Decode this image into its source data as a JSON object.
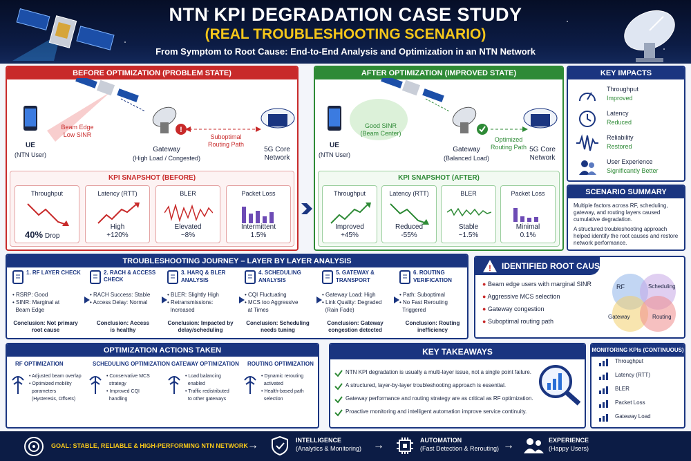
{
  "header": {
    "title": "NTN KPI DEGRADATION CASE STUDY",
    "subtitle": "(REAL TROUBLESHOOTING SCENARIO)",
    "tagline": "From Symptom to Root Cause: End-to-End Analysis and Optimization in an NTN Network"
  },
  "before": {
    "title": "BEFORE OPTIMIZATION (PROBLEM STATE)",
    "ue_label": "UE",
    "ue_sub": "(NTN User)",
    "beam_note_1": "Beam Edge",
    "beam_note_2": "Low SINR",
    "gateway_label": "Gateway",
    "gateway_sub": "(High Load / Congested)",
    "routing_note_1": "Suboptimal",
    "routing_note_2": "Routing Path",
    "core_label_1": "5G Core",
    "core_label_2": "Network",
    "kpi_title": "KPI SNAPSHOT (BEFORE)",
    "kpis": [
      {
        "name": "Throughput",
        "v1": "40%",
        "v2": "Drop"
      },
      {
        "name": "Latency (RTT)",
        "v1": "High",
        "v2": "+120%"
      },
      {
        "name": "BLER",
        "v1": "Elevated",
        "v2": "~8%"
      },
      {
        "name": "Packet Loss",
        "v1": "Intermittent",
        "v2": "1.5%"
      }
    ]
  },
  "after": {
    "title": "AFTER OPTIMIZATION (IMPROVED STATE)",
    "ue_label": "UE",
    "ue_sub": "(NTN User)",
    "beam_note_1": "Good SINR",
    "beam_note_2": "(Beam Center)",
    "gateway_label": "Gateway",
    "gateway_sub": "(Balanced Load)",
    "routing_note_1": "Optimized",
    "routing_note_2": "Routing Path",
    "core_label_1": "5G Core",
    "core_label_2": "Network",
    "kpi_title": "KPI SNAPSHOT (AFTER)",
    "kpis": [
      {
        "name": "Throughput",
        "v1": "Improved",
        "v2": "+45%"
      },
      {
        "name": "Latency (RTT)",
        "v1": "Reduced",
        "v2": "-55%"
      },
      {
        "name": "BLER",
        "v1": "Stable",
        "v2": "~1.5%"
      },
      {
        "name": "Packet Loss",
        "v1": "Minimal",
        "v2": "0.1%"
      }
    ]
  },
  "impacts": {
    "title": "KEY IMPACTS",
    "items": [
      {
        "name": "Throughput",
        "status": "Improved",
        "icon": "speedometer-icon"
      },
      {
        "name": "Latency",
        "status": "Reduced",
        "icon": "clock-icon"
      },
      {
        "name": "Reliability",
        "status": "Restored",
        "icon": "waveform-icon"
      },
      {
        "name": "User Experience",
        "status": "Significantly Better",
        "icon": "users-icon"
      }
    ]
  },
  "scenario": {
    "title": "SCENARIO SUMMARY",
    "p1": "Multiple factors across RF, scheduling, gateway, and routing layers caused cumulative degradation.",
    "p2": "A structured troubleshooting approach helped identify the root causes and restore network performance."
  },
  "journey": {
    "title": "TROUBLESHOOTING JOURNEY – LAYER BY LAYER ANALYSIS",
    "steps": [
      {
        "title_1": "1. RF LAYER CHECK",
        "title_2": "",
        "b1": "• RSRP: Good",
        "b2": "• SINR: Marginal at",
        "b3": "  Beam Edge",
        "c1": "Conclusion: Not primary",
        "c2": "root cause"
      },
      {
        "title_1": "2. RACH & ACCESS CHECK",
        "title_2": "",
        "b1": "• RACH Success: Stable",
        "b2": "• Access Delay: Normal",
        "b3": "",
        "c1": "Conclusion: Access",
        "c2": "is healthy"
      },
      {
        "title_1": "3. HARQ & BLER",
        "title_2": "ANALYSIS",
        "b1": "• BLER: Slightly High",
        "b2": "• Retransmissions:",
        "b3": "  Increased",
        "c1": "Conclusion: Impacted by",
        "c2": "delay/scheduling"
      },
      {
        "title_1": "4. SCHEDULING",
        "title_2": "ANALYSIS",
        "b1": "• CQI Fluctuating",
        "b2": "• MCS too Aggressive",
        "b3": "  at Times",
        "c1": "Conclusion: Scheduling",
        "c2": "needs tuning"
      },
      {
        "title_1": "5. GATEWAY &",
        "title_2": "TRANSPORT",
        "b1": "• Gateway Load: High",
        "b2": "• Link Quality: Degraded",
        "b3": "  (Rain Fade)",
        "c1": "Conclusion: Gateway",
        "c2": "congestion detected"
      },
      {
        "title_1": "6. ROUTING",
        "title_2": "VERIFICATION",
        "b1": "• Path: Suboptimal",
        "b2": "• No Fast Rerouting",
        "b3": "  Triggered",
        "c1": "Conclusion: Routing",
        "c2": "inefficiency"
      }
    ]
  },
  "root": {
    "title": "IDENTIFIED ROOT CAUSES",
    "items": [
      "Beam edge users with marginal SINR",
      "Aggressive MCS selection",
      "Gateway congestion",
      "Suboptimal routing path"
    ],
    "venn": [
      "RF",
      "Scheduling",
      "Gateway",
      "Routing"
    ]
  },
  "actions": {
    "title": "OPTIMIZATION ACTIONS TAKEN",
    "cols": [
      {
        "head": "RF OPTIMIZATION",
        "l1": "• Adjusted beam overlap",
        "l2": "• Optimized mobility",
        "l3": "  parameters",
        "l4": "  (Hysteresis, Offsets)"
      },
      {
        "head": "SCHEDULING OPTIMIZATION",
        "l1": "• Conservative MCS",
        "l2": "  strategy",
        "l3": "• Improved CQI",
        "l4": "  handling"
      },
      {
        "head": "GATEWAY OPTIMIZATION",
        "l1": "• Load balancing",
        "l2": "  enabled",
        "l3": "• Traffic redistributed",
        "l4": "  to other gateways"
      },
      {
        "head": "ROUTING OPTIMIZATION",
        "l1": "• Dynamic rerouting",
        "l2": "  activated",
        "l3": "• Health-based path",
        "l4": "  selection"
      }
    ]
  },
  "takeaways": {
    "title": "KEY TAKEAWAYS",
    "items": [
      "NTN KPI degradation is usually a multi-layer issue, not a single point failure.",
      "A structured, layer-by-layer troubleshooting approach is essential.",
      "Gateway performance and routing strategy are as critical as RF optimization.",
      "Proactive monitoring and intelligent automation improve service continuity."
    ]
  },
  "monitoring": {
    "title": "MONITORING KPIs (CONTINUOUS)",
    "items": [
      "Throughput",
      "Latency (RTT)",
      "BLER",
      "Packet Loss",
      "Gateway Load"
    ]
  },
  "footer": {
    "goal_prefix": "GOAL:",
    "goal_text": "STABLE, RELIABLE & HIGH-PERFORMING NTN NETWORK",
    "s1": "INTELLIGENCE",
    "s1b": "(Analytics & Monitoring)",
    "s2": "AUTOMATION",
    "s2b": "(Fast Detection & Rerouting)",
    "s3": "EXPERIENCE",
    "s3b": "(Happy Users)"
  },
  "colors": {
    "navy": "#1a3580",
    "red": "#c82a2a",
    "green": "#2e8a36",
    "gold": "#f5c61a"
  }
}
